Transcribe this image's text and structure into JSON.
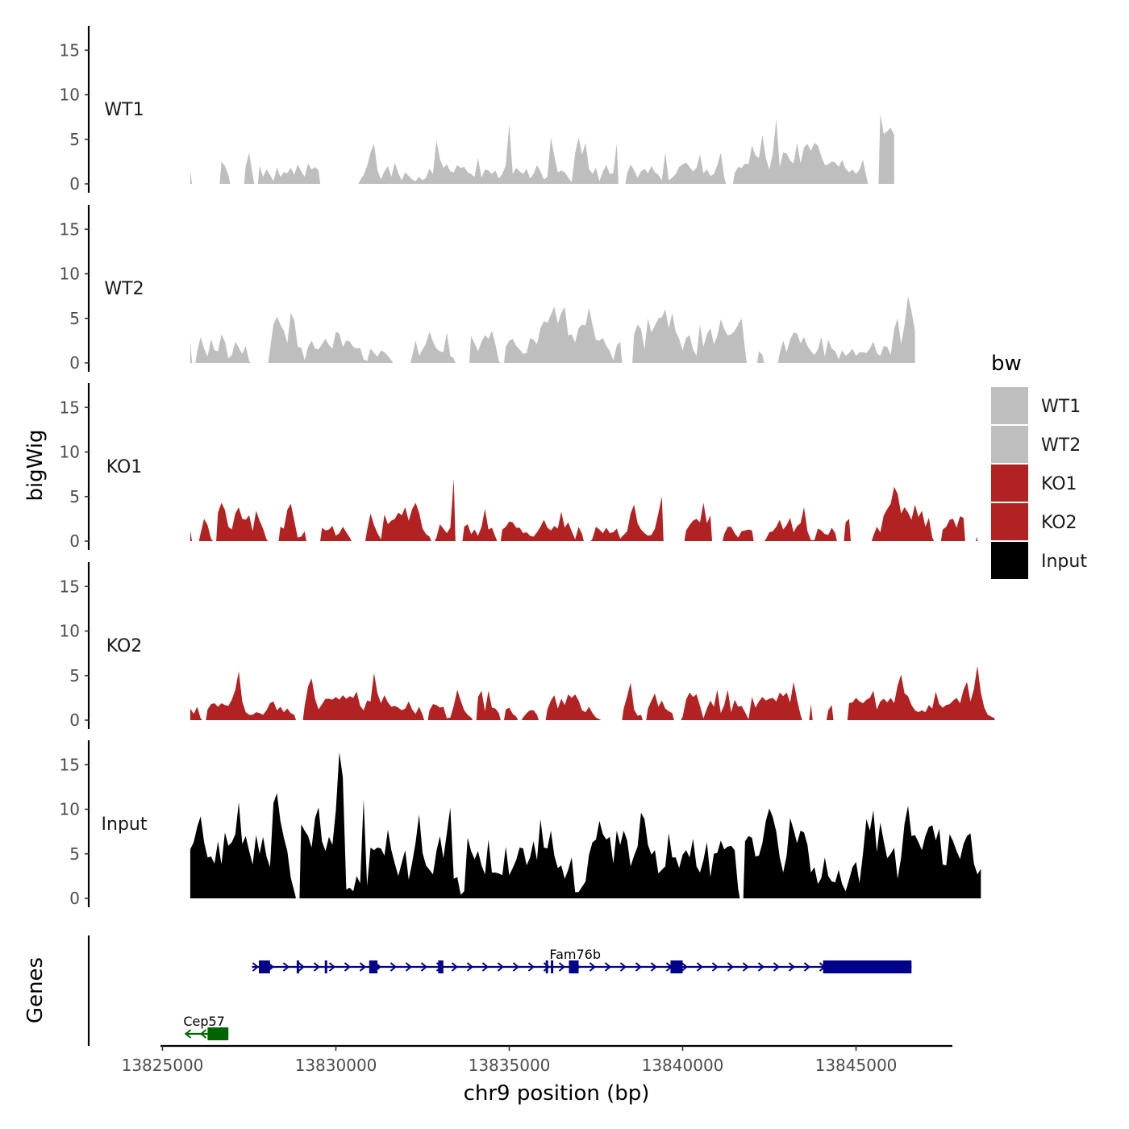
{
  "chart_data": {
    "type": "area",
    "title": "",
    "xlabel": "chr9 position (bp)",
    "ylabel": "bigWig",
    "genes_label": "Genes",
    "xlim": [
      13823750,
      13848800
    ],
    "ylim": [
      0,
      18
    ],
    "x_ticks": [
      13825000,
      13830000,
      13835000,
      13840000,
      13845000
    ],
    "x_tick_labels": [
      "13825000",
      "13830000",
      "13835000",
      "13840000",
      "13845000"
    ],
    "y_ticks": [
      0,
      5,
      10,
      15
    ],
    "y_tick_labels": [
      "0",
      "5",
      "10",
      "15"
    ],
    "x_start": 13825800,
    "x_step": 100,
    "legend": {
      "title": "bw",
      "position": "right",
      "entries": [
        {
          "label": "WT1",
          "color": "#bebebe"
        },
        {
          "label": "WT2",
          "color": "#bebebe"
        },
        {
          "label": "KO1",
          "color": "#b22222"
        },
        {
          "label": "KO2",
          "color": "#b22222"
        },
        {
          "label": "Input",
          "color": "#000000"
        }
      ]
    },
    "series": [
      {
        "name": "WT1",
        "color": "#bebebe",
        "values": [
          1.5,
          0,
          0,
          0,
          0,
          0,
          0,
          0,
          0,
          2.5,
          2,
          1,
          0,
          0,
          0,
          0,
          2,
          3.5,
          1,
          0,
          2,
          0.8,
          1.6,
          1,
          0.3,
          1.8,
          0.8,
          1.3,
          1.2,
          1.8,
          1,
          2.2,
          1.4,
          0.8,
          2.3,
          1.6,
          1.9,
          1.5,
          0,
          0,
          0,
          0,
          0,
          0,
          0,
          0,
          0,
          0,
          0,
          0.4,
          1,
          2,
          3.5,
          4.5,
          1.5,
          0.5,
          1.4,
          2,
          0.8,
          2.4,
          1.2,
          0.4,
          1.3,
          0.9,
          0.5,
          0.3,
          0.8,
          0.4,
          0.7,
          1.7,
          1.1,
          4.9,
          2.8,
          1.8,
          2.2,
          1.4,
          1.3,
          2.1,
          1.8,
          1.9,
          1.3,
          1.1,
          0.8,
          2.9,
          0.7,
          1.6,
          1.5,
          1.1,
          1.5,
          0.6,
          1.1,
          2.1,
          6.7,
          1.1,
          1.8,
          1.4,
          1.1,
          1.7,
          0.6,
          1.1,
          2.1,
          1.4,
          0.5,
          0.8,
          5.2,
          3.1,
          1.3,
          1.5,
          1.3,
          0.7,
          0.2,
          3.4,
          5.2,
          3.3,
          4.6,
          1.7,
          1.1,
          1.8,
          0.3,
          1.4,
          2.1,
          1.1,
          1.2,
          4.5,
          0,
          0,
          1.2,
          2.2,
          1.5,
          0.7,
          1.4,
          1.7,
          1.2,
          2,
          1.3,
          1,
          0.4,
          3.5,
          0.4,
          0.7,
          1.1,
          1.9,
          2.2,
          2.4,
          1.9,
          1.4,
          1.8,
          3.3,
          1.2,
          1.6,
          0.9,
          1.1,
          2.1,
          3.5,
          0.7,
          0,
          0,
          1.2,
          1.9,
          1.8,
          2.3,
          2.2,
          4.3,
          3.2,
          2.9,
          5.5,
          2.9,
          1.6,
          3.4,
          7.3,
          1.9,
          3.5,
          3.4,
          2.6,
          2.3,
          4.6,
          2.3,
          4.1,
          4.5,
          3.7,
          4.6,
          4.3,
          3.1,
          2.1,
          2.2,
          2.5,
          2.4,
          1.9,
          2.7,
          1.7,
          1.3,
          1.6,
          1.1,
          1.6,
          2.7,
          0.8,
          0,
          0,
          0,
          7.8,
          5.6,
          5.9,
          6.3,
          5.5
        ]
      },
      {
        "name": "WT2",
        "color": "#bebebe",
        "values": [
          2.5,
          0,
          1.3,
          2.9,
          1.6,
          0.7,
          2.7,
          1.4,
          1.3,
          3.2,
          2.4,
          0.5,
          0.9,
          2.4,
          1.7,
          1,
          1.9,
          0.2,
          0,
          0,
          0,
          0,
          0,
          1.5,
          4.3,
          5.2,
          4.3,
          3.6,
          2.2,
          5.6,
          4.8,
          1.8,
          1.7,
          0.3,
          1.8,
          2.5,
          1.6,
          1.5,
          2.1,
          2.7,
          2,
          1.6,
          3.5,
          3.3,
          1.8,
          2.5,
          2.4,
          1.8,
          1.6,
          1.7,
          0.4,
          0.2,
          1.6,
          1.1,
          0.7,
          1.4,
          1.2,
          0.8,
          0.3,
          0,
          0,
          0,
          0,
          0,
          0.7,
          2.5,
          0.8,
          1.5,
          2.2,
          3.5,
          2.4,
          1.6,
          1.3,
          1.2,
          3.4,
          0.8,
          0.5,
          0,
          0,
          0,
          0,
          3,
          2.2,
          1.3,
          2.4,
          3.1,
          2.7,
          3.6,
          2.1,
          0.2,
          0,
          1.8,
          2.5,
          2.7,
          1.9,
          1.5,
          1,
          1.1,
          2.8,
          2.6,
          2.1,
          3.9,
          4.7,
          4.5,
          5.4,
          6.3,
          4.4,
          5.6,
          6.3,
          3.1,
          3.2,
          2.3,
          3.9,
          4.3,
          4.2,
          6.2,
          4.3,
          2.6,
          2.5,
          2.8,
          1.9,
          1.3,
          0.3,
          1.9,
          2.4,
          0,
          0,
          0,
          3.2,
          4.3,
          3.8,
          1.5,
          5,
          3.4,
          4.2,
          5,
          5.1,
          6,
          3.9,
          5.6,
          3.5,
          2.7,
          1.4,
          2.8,
          3.1,
          1.5,
          0.8,
          4.3,
          1.8,
          3.2,
          3.9,
          2.1,
          3,
          4.9,
          3.8,
          3.1,
          3.2,
          3.6,
          4.3,
          5,
          1.5,
          0,
          0,
          0,
          1.3,
          0.9,
          0,
          0,
          0,
          0,
          1.1,
          2.5,
          1.2,
          2.6,
          3.4,
          3.3,
          2.2,
          2.9,
          1.9,
          1.3,
          0.9,
          1.5,
          2.9,
          0.7,
          2.6,
          1.6,
          1.3,
          0.4,
          1.4,
          0.8,
          1.1,
          1.6,
          0.8,
          1.2,
          1.2,
          1.1,
          1.6,
          2.4,
          1.1,
          0.8,
          1.9,
          1.8,
          0.9,
          3.8,
          5,
          2.1,
          4.3,
          7.5,
          5.8,
          3.6
        ]
      },
      {
        "name": "KO1",
        "color": "#b22222",
        "values": [
          1.2,
          0,
          0,
          0.9,
          2.5,
          1.8,
          0.3,
          0,
          3.2,
          4.3,
          3.5,
          1.6,
          1.3,
          3.1,
          3.8,
          2.5,
          2.4,
          2.9,
          1.1,
          3.4,
          2.3,
          1.4,
          0.2,
          0,
          0,
          0,
          1.6,
          1.4,
          3.5,
          4.2,
          2.3,
          0.4,
          0.5,
          1.1,
          0,
          0,
          0,
          0,
          1.5,
          1.2,
          1.3,
          1.7,
          0.6,
          0.9,
          1.6,
          1,
          0.4,
          0,
          0,
          0,
          0,
          1.2,
          3.1,
          1.8,
          0.9,
          0.2,
          3,
          1.9,
          2.3,
          2.5,
          3.2,
          2.9,
          3.8,
          2.3,
          3.6,
          4.3,
          3.2,
          1.4,
          0.8,
          0.5,
          0,
          0.4,
          1.9,
          1.4,
          0.9,
          1.5,
          7,
          0,
          0,
          1.6,
          1.9,
          0.8,
          1.3,
          0.6,
          1.6,
          3.6,
          1.3,
          1.5,
          0.5,
          0,
          1.3,
          1.6,
          2.2,
          2.1,
          1.5,
          1.5,
          0.9,
          1,
          0.6,
          0.5,
          1,
          1.6,
          2.4,
          1.5,
          1.2,
          1.7,
          1.4,
          3.3,
          1.5,
          2.1,
          1.1,
          0.2,
          1.6,
          0.8,
          0,
          0,
          0.3,
          1.6,
          1.3,
          0.9,
          1.5,
          0.9,
          1,
          1.4,
          0.3,
          0.7,
          1.1,
          3.1,
          4.1,
          2,
          1.3,
          0.9,
          0.6,
          0.7,
          1.4,
          3.1,
          5,
          0,
          0,
          0,
          0,
          0,
          0,
          1.2,
          1.8,
          2.3,
          2.5,
          2.1,
          4.3,
          2,
          2.9,
          0,
          0,
          0,
          0.8,
          1.6,
          1.6,
          0.9,
          0.4,
          1.1,
          1.2,
          1.3,
          1.2,
          0,
          0,
          0,
          0.2,
          1,
          1.1,
          1.6,
          2.4,
          1.3,
          1.8,
          2.6,
          1,
          1.7,
          2,
          3.8,
          1.1,
          0.1,
          0.1,
          1.4,
          1.2,
          0.8,
          0.7,
          1.5,
          0.9,
          0,
          0,
          2.1,
          2.5,
          0,
          0,
          0,
          0,
          0,
          0,
          0.6,
          1.6,
          1,
          2.9,
          3.6,
          4.2,
          6.1,
          5.3,
          3.1,
          3.8,
          3.2,
          2.4,
          4.1,
          2.7,
          3.4,
          1.6,
          2.6,
          0.4,
          0,
          0,
          1.3,
          1.6,
          2.4,
          2.5,
          1.5,
          2.8,
          2.6,
          0,
          0,
          0,
          0.5
        ]
      },
      {
        "name": "KO2",
        "color": "#b22222",
        "values": [
          1.3,
          0.7,
          1.5,
          0.2,
          0,
          1.2,
          1.8,
          1.9,
          1.5,
          1.9,
          1.7,
          1.6,
          2.3,
          3.4,
          5.5,
          2.1,
          0.9,
          0.6,
          0.6,
          0.9,
          0.8,
          0.6,
          1.1,
          1.9,
          2.1,
          1.1,
          1.5,
          0.9,
          1.3,
          0.8,
          0.6,
          0,
          0,
          1.6,
          3.8,
          4.7,
          2.4,
          1.2,
          1.8,
          2.4,
          2.4,
          2.3,
          2.6,
          2.3,
          2.8,
          2.4,
          2.7,
          2.5,
          3.2,
          1.6,
          1.1,
          2.2,
          2.1,
          5.3,
          3,
          1.9,
          2.8,
          2,
          1.5,
          1.6,
          1.4,
          1.1,
          1.3,
          2.1,
          1.2,
          0.7,
          1.5,
          0.6,
          0,
          1.1,
          1.8,
          1.7,
          1.4,
          1.5,
          0.2,
          0.3,
          1.6,
          3.4,
          2.2,
          1.1,
          0.6,
          0.3,
          0,
          2.6,
          3.3,
          1,
          3.3,
          1.4,
          1.3,
          0.8,
          0,
          1.2,
          1.4,
          0.7,
          0.4,
          0,
          0.3,
          0.8,
          1.1,
          1.1,
          0.6,
          0,
          0,
          1.2,
          2.2,
          2.8,
          1.3,
          2.4,
          1.7,
          2.9,
          2.5,
          2.9,
          2.2,
          1.1,
          0.9,
          1.5,
          0.8,
          0.3,
          0.1,
          0,
          0,
          0,
          0,
          0,
          0,
          1.3,
          2.7,
          4.2,
          1.2,
          0.5,
          0.6,
          0,
          1.3,
          2.2,
          3,
          1.5,
          2.2,
          1.3,
          1,
          0.8,
          0,
          0,
          0.4,
          2.3,
          3.1,
          2.6,
          2.9,
          1.6,
          0.2,
          1.3,
          2.2,
          1.5,
          3.4,
          0.8,
          1.7,
          3.4,
          0.9,
          2.3,
          1.5,
          1.6,
          0.9,
          0.1,
          2.6,
          1.4,
          2.1,
          2.6,
          2.2,
          2.4,
          2.5,
          2.1,
          3.1,
          2.7,
          3.1,
          2,
          4.3,
          2.3,
          0.6,
          0,
          0,
          1.8,
          0,
          0,
          0,
          0,
          1.1,
          1.7,
          0,
          0,
          0,
          0,
          1.9,
          2,
          2.5,
          2.1,
          1.9,
          2.3,
          2.5,
          3.3,
          1.2,
          2.1,
          2.4,
          2,
          2.5,
          1.9,
          3.9,
          5.1,
          3,
          2.7,
          1.7,
          1.1,
          0.9,
          1.1,
          0.9,
          1.7,
          1.3,
          3.2,
          1.8,
          1.4,
          1.7,
          1.8,
          2.2,
          2.5,
          1.9,
          3.4,
          4.3,
          2.1,
          3.5,
          6.1,
          3.1,
          1.4,
          0.6,
          0.4,
          0.2
        ]
      },
      {
        "name": "Input",
        "color": "#000000",
        "values": [
          5.5,
          6.3,
          8,
          9.2,
          6.3,
          4.6,
          4.7,
          3.9,
          6.4,
          3.8,
          7.4,
          5.9,
          6.3,
          7.2,
          10.8,
          6.1,
          7,
          5.3,
          3.8,
          7.1,
          5,
          6.9,
          4.7,
          3.5,
          10.7,
          11.8,
          8.7,
          6.8,
          5.3,
          2.3,
          0.8,
          0,
          8.3,
          7.6,
          7,
          5.7,
          9,
          10.2,
          6.4,
          5.3,
          6.9,
          6,
          9.9,
          16.4,
          13.6,
          1,
          1.2,
          0.8,
          2.5,
          1.7,
          11.1,
          1.4,
          5.7,
          5.4,
          5.7,
          5.6,
          4.8,
          7.7,
          5.4,
          3.9,
          2.5,
          4,
          5.4,
          2.1,
          4,
          6.3,
          9.4,
          5.1,
          3.7,
          3.2,
          2.7,
          5.3,
          7,
          4.5,
          7.3,
          10.2,
          2.2,
          2.4,
          0.4,
          0.8,
          6.8,
          5.3,
          4.4,
          5.3,
          3.7,
          2.7,
          6.6,
          2.9,
          2.9,
          2.8,
          2.6,
          5.8,
          2.6,
          3.4,
          4.3,
          5.7,
          5.6,
          3.7,
          4.6,
          6.4,
          4.3,
          8.9,
          5.7,
          5.6,
          7.6,
          4.8,
          3.4,
          3.7,
          2.2,
          3.2,
          4.6,
          0.7,
          0.7,
          1.3,
          1.9,
          4.9,
          6.3,
          6.6,
          8.7,
          7.2,
          6.6,
          6.9,
          3.9,
          7.6,
          6,
          7.6,
          6.5,
          3.6,
          4.8,
          5.8,
          9.6,
          8.9,
          6,
          4.9,
          5.4,
          2.8,
          3.2,
          3.6,
          7.3,
          4.6,
          4.6,
          3.4,
          4.9,
          5.4,
          4.6,
          6.7,
          3.6,
          2.9,
          4.3,
          6.3,
          2.4,
          5,
          5.1,
          6.5,
          5.5,
          5.8,
          5.9,
          5.4,
          1.1,
          0,
          6.4,
          7,
          6.8,
          4.7,
          4.8,
          6.2,
          8.7,
          10.1,
          9.1,
          7.5,
          4.6,
          2.9,
          4.8,
          9,
          7.7,
          6.2,
          7.6,
          7.4,
          6,
          2.9,
          3.5,
          1.6,
          2.3,
          4.6,
          2.5,
          1.9,
          1.8,
          3.2,
          1.6,
          0.8,
          2.1,
          3.5,
          4.1,
          1.7,
          5,
          8.9,
          7.6,
          9.9,
          5.2,
          8.5,
          6.4,
          4.5,
          5,
          5.7,
          2.2,
          4.6,
          8.4,
          10.4,
          7,
          7.1,
          6.3,
          5.4,
          7,
          8,
          8.2,
          6.5,
          7.8,
          3.8,
          3.7,
          7.2,
          6.4,
          5.3,
          4.4,
          6.1,
          7,
          7.3,
          3.9,
          2.7,
          3.3
        ]
      }
    ],
    "genes": [
      {
        "name": "Fam76b",
        "strand": "+",
        "color": "#00008b",
        "start": 13827580,
        "end": 13846600,
        "exons": [
          [
            13827780,
            13828100
          ],
          [
            13828870,
            13828930
          ],
          [
            13829680,
            13829710
          ],
          [
            13830960,
            13831200
          ],
          [
            13832950,
            13833100
          ],
          [
            13836050,
            13836080
          ],
          [
            13836200,
            13836230
          ],
          [
            13836720,
            13837000
          ],
          [
            13839650,
            13840000
          ],
          [
            13844050,
            13846600
          ]
        ]
      },
      {
        "name": "Cep57",
        "strand": "-",
        "color": "#006400",
        "start": 13825650,
        "end": 13826900,
        "exons": [
          [
            13826300,
            13826900
          ]
        ]
      }
    ]
  }
}
